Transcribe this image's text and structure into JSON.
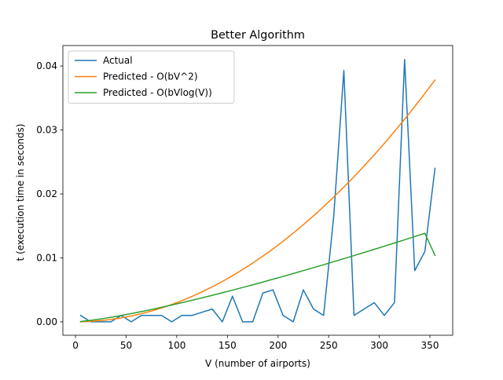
{
  "chart_data": {
    "type": "line",
    "title": "Better Algorithm",
    "xlabel": "V (number of airports)",
    "ylabel": "t (execution time in seconds)",
    "xlim": [
      -12.5,
      372.5
    ],
    "ylim": [
      -0.0021,
      0.0432
    ],
    "xticks": [
      0,
      50,
      100,
      150,
      200,
      250,
      300,
      350
    ],
    "xtick_labels": [
      "0",
      "50",
      "100",
      "150",
      "200",
      "250",
      "300",
      "350"
    ],
    "yticks": [
      0.0,
      0.01,
      0.02,
      0.03,
      0.04
    ],
    "ytick_labels": [
      "0.00",
      "0.01",
      "0.02",
      "0.03",
      "0.04"
    ],
    "grid": false,
    "legend_position": "top-left",
    "series": [
      {
        "name": "Actual",
        "color": "#1f77b4",
        "x": [
          5,
          15,
          25,
          35,
          45,
          55,
          65,
          75,
          85,
          95,
          105,
          115,
          125,
          135,
          145,
          155,
          165,
          175,
          185,
          195,
          205,
          215,
          225,
          235,
          245,
          255,
          265,
          275,
          285,
          295,
          305,
          315,
          325,
          335,
          345,
          355
        ],
        "y": [
          0.001,
          0.0,
          0.0,
          0.0,
          0.001,
          0.0,
          0.001,
          0.001,
          0.001,
          0.0,
          0.001,
          0.001,
          0.0015,
          0.002,
          0.0,
          0.004,
          0.0,
          0.0,
          0.0045,
          0.005,
          0.001,
          0.0,
          0.005,
          0.002,
          0.001,
          0.0165,
          0.0393,
          0.001,
          0.002,
          0.003,
          0.001,
          0.003,
          0.041,
          0.008,
          0.011,
          0.024
        ]
      },
      {
        "name": "Predicted - O(bV^2)",
        "color": "#ff7f0e",
        "x": [
          5,
          15,
          25,
          35,
          45,
          55,
          65,
          75,
          85,
          95,
          105,
          115,
          125,
          135,
          145,
          155,
          165,
          175,
          185,
          195,
          205,
          215,
          225,
          235,
          245,
          255,
          265,
          275,
          285,
          295,
          305,
          315,
          325,
          335,
          345,
          355
        ],
        "y": [
          7.5e-06,
          6.75e-05,
          0.0001875,
          0.0003675,
          0.0006075,
          0.0009075,
          0.0012675,
          0.0016875,
          0.0021675,
          0.0027075,
          0.0033075,
          0.0039675,
          0.0046875,
          0.0054675,
          0.0063075,
          0.0072075,
          0.0081675,
          0.0091875,
          0.0102675,
          0.0114075,
          0.0126075,
          0.0138675,
          0.0151875,
          0.0165675,
          0.0180075,
          0.0195075,
          0.0210675,
          0.0226875,
          0.0243675,
          0.0261075,
          0.0279075,
          0.0297675,
          0.0316875,
          0.0336675,
          0.0357075,
          0.0378075
        ]
      },
      {
        "name": "Predicted - O(bVlog(V))",
        "color": "#2ca02c",
        "x": [
          5,
          15,
          25,
          35,
          45,
          55,
          65,
          75,
          85,
          95,
          105,
          115,
          125,
          135,
          145,
          155,
          165,
          175,
          185,
          195,
          205,
          215,
          225,
          235,
          245,
          255,
          265,
          275,
          285,
          295,
          305,
          315,
          325,
          335,
          345,
          355
        ],
        "y": [
          4.45e-05,
          0.0002296,
          0.0004554,
          0.0007104,
          0.0009887,
          0.0012862,
          0.0016003,
          0.001929,
          0.0022708,
          0.0026246,
          0.0029893,
          0.0033641,
          0.0037483,
          0.0041412,
          0.0045424,
          0.0049514,
          0.0053678,
          0.0057912,
          0.0062214,
          0.006658,
          0.0071007,
          0.0075494,
          0.0080038,
          0.0084637,
          0.0089289,
          0.0093993,
          0.0098747,
          0.010355,
          0.01084,
          0.0113296,
          0.0118237,
          0.0123223,
          0.0128251,
          0.0133321,
          0.0138432,
          0.0104
        ]
      }
    ]
  }
}
